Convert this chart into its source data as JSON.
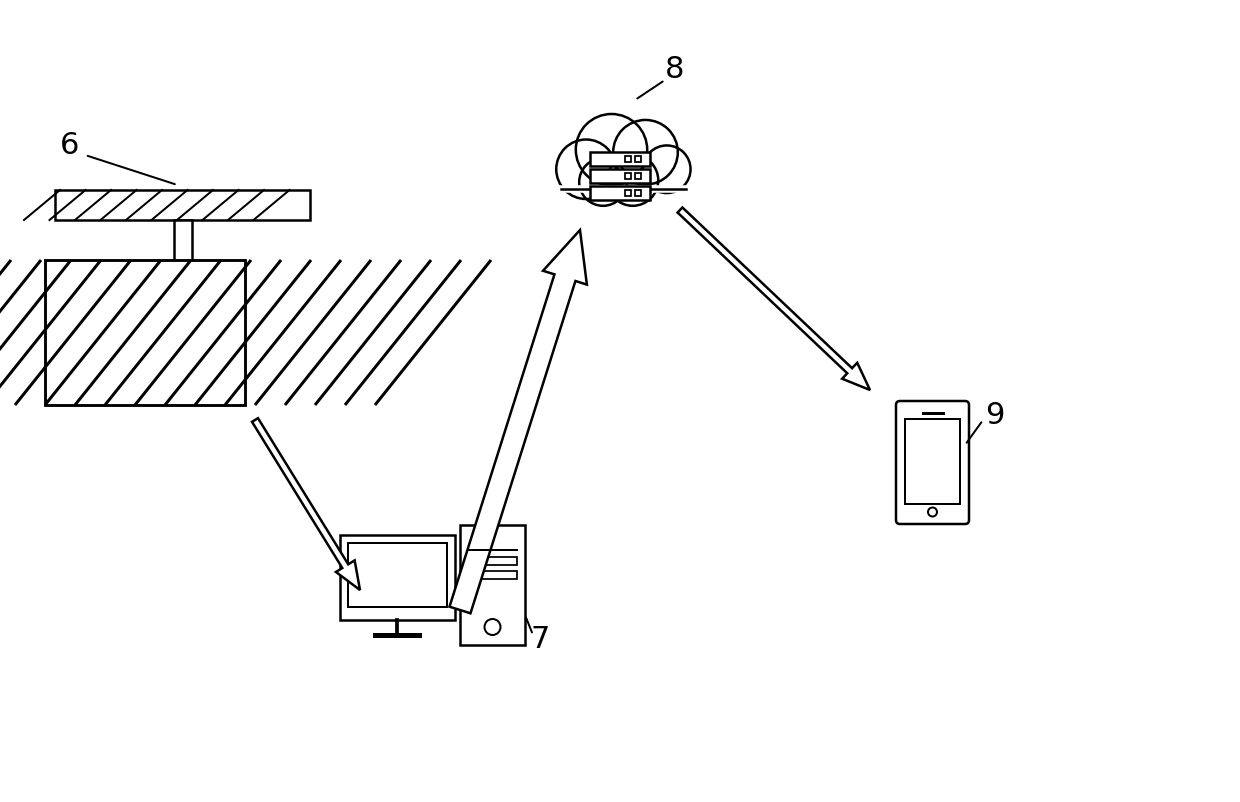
{
  "bg_color": "#ffffff",
  "label_6": "6",
  "label_7": "7",
  "label_8": "8",
  "label_9": "9",
  "label_fontsize": 22,
  "line_color": "#000000",
  "arrow_color": "#000000",
  "hatch_color": "#000000"
}
